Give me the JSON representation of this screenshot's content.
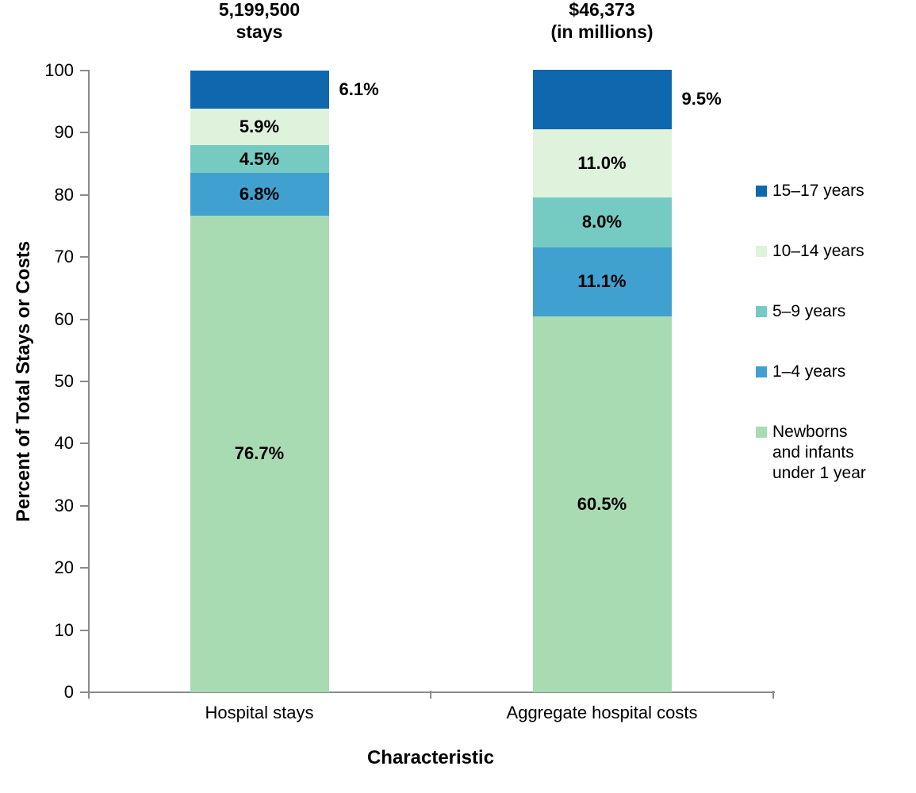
{
  "chart_data": {
    "type": "bar",
    "subtype": "stacked-percent",
    "title": "",
    "xlabel": "Characteristic",
    "ylabel": "Percent of Total Stays or Costs",
    "ylim": [
      0,
      100
    ],
    "yticks": [
      0,
      10,
      20,
      30,
      40,
      50,
      60,
      70,
      80,
      90,
      100
    ],
    "grid": false,
    "legend_position": "right",
    "axis_color": "#8a8a8a",
    "text_color": "#000000",
    "categories": [
      "Hospital stays",
      "Aggregate hospital costs"
    ],
    "category_totals": [
      [
        "5,199,500",
        "stays"
      ],
      [
        "$46,373",
        "(in millions)"
      ]
    ],
    "series": [
      {
        "name": "Newborns and infants under 1 year",
        "color": "#a9dbb2",
        "values": [
          76.7,
          60.5
        ],
        "label_outside": false
      },
      {
        "name": "1–4 years",
        "color": "#40a0d0",
        "values": [
          6.8,
          11.1
        ],
        "label_outside": false
      },
      {
        "name": "5–9 years",
        "color": "#75cbc2",
        "values": [
          4.5,
          8.0
        ],
        "label_outside": false
      },
      {
        "name": "10–14 years",
        "color": "#def2dc",
        "values": [
          5.9,
          11.0
        ],
        "label_outside": false
      },
      {
        "name": "15–17 years",
        "color": "#0f67ae",
        "values": [
          6.1,
          9.5
        ],
        "label_outside": true
      }
    ],
    "segment_labels": {
      "Hospital stays": [
        "76.7%",
        "6.8%",
        "4.5%",
        "5.9%",
        "6.1%"
      ],
      "Aggregate hospital costs": [
        "60.5%",
        "11.1%",
        "8.0%",
        "11.0%",
        "9.5%"
      ]
    }
  }
}
